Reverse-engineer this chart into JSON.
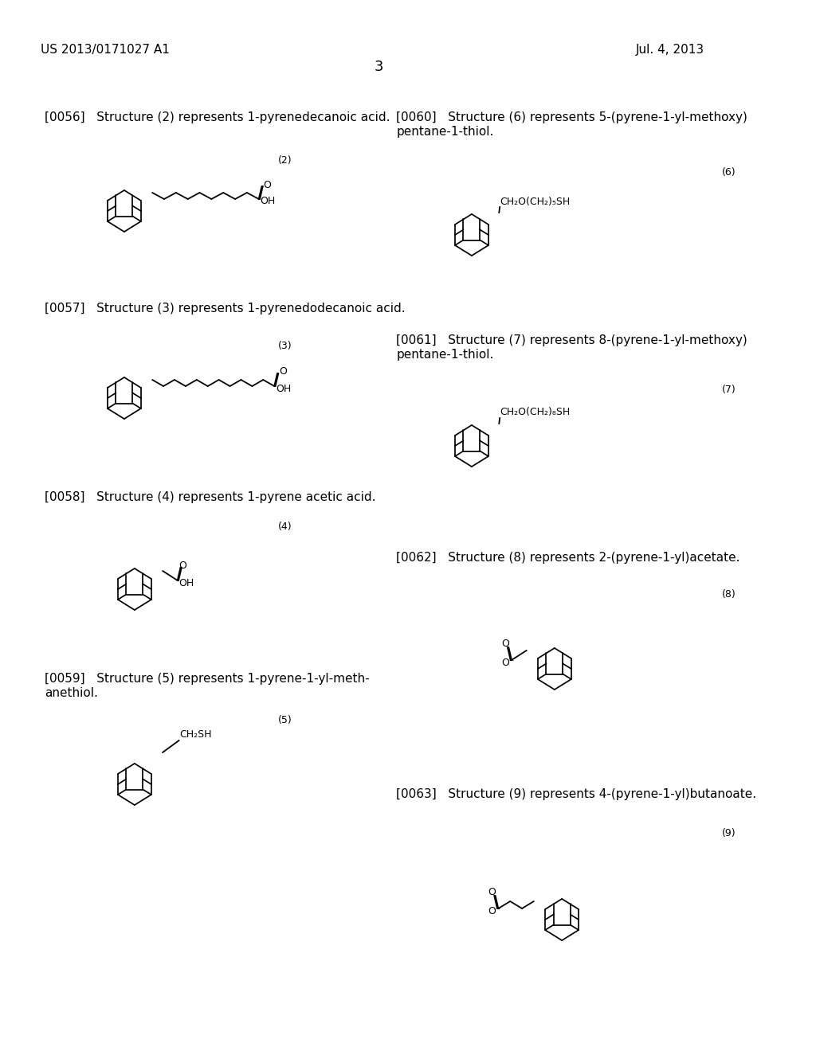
{
  "page_left": "US 2013/0171027 A1",
  "page_right": "Jul. 4, 2013",
  "page_number": "3",
  "background": "#ffffff",
  "text_color": "#000000",
  "structures": [
    {
      "id": "0056",
      "label": "[0056]",
      "description": "Structure (2) represents 1-pyrenedecanoic acid.",
      "struct_num": "(2)",
      "col": 0,
      "row": 0
    },
    {
      "id": "0057",
      "label": "[0057]",
      "description": "Structure (3) represents 1-pyrenedodecanoic acid.",
      "struct_num": "(3)",
      "col": 0,
      "row": 1
    },
    {
      "id": "0058",
      "label": "[0058]",
      "description": "Structure (4) represents 1-pyrene acetic acid.",
      "struct_num": "(4)",
      "col": 0,
      "row": 2
    },
    {
      "id": "0059",
      "label": "[0059]",
      "description": "Structure (5) represents 1-pyrene-1-yl-meth-\nanethiol.",
      "struct_num": "(5)",
      "col": 0,
      "row": 3
    },
    {
      "id": "0060",
      "label": "[0060]",
      "description": "Structure (6) represents 5-(pyrene-1-yl-methoxy)\npentane-1-thiol.",
      "struct_num": "(6)",
      "col": 1,
      "row": 0
    },
    {
      "id": "0061",
      "label": "[0061]",
      "description": "Structure (7) represents 8-(pyrene-1-yl-methoxy)\npentane-1-thiol.",
      "struct_num": "(7)",
      "col": 1,
      "row": 1
    },
    {
      "id": "0062",
      "label": "[0062]",
      "description": "Structure (8) represents 2-(pyrene-1-yl)acetate.",
      "struct_num": "(8)",
      "col": 1,
      "row": 2
    },
    {
      "id": "0063",
      "label": "[0063]",
      "description": "Structure (9) represents 4-(pyrene-1-yl)butanoate.",
      "struct_num": "(9)",
      "col": 1,
      "row": 3
    }
  ]
}
